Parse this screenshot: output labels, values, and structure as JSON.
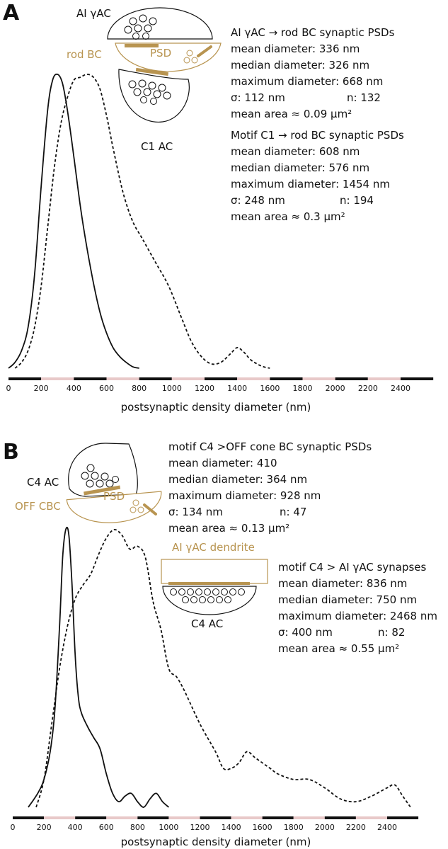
{
  "colors": {
    "curve": "#111111",
    "psd_tan": "#b89450",
    "axis_pink": "#e8c9c9"
  },
  "panels": [
    {
      "letter": "A",
      "schematic": {
        "top_cell": "AI γAC",
        "middle_cell": "rod BC",
        "psd": "PSD",
        "bottom_cell": "C1 AC"
      },
      "stats": [
        {
          "title": "AI γAC → rod BC synaptic PSDs",
          "mean_diameter": "mean diameter: 336 nm",
          "median_diameter": "median diameter: 326 nm",
          "maximum_diameter": "maximum diameter: 668 nm",
          "sigma": "σ: 112 nm",
          "n": "n: 132",
          "mean_area": "mean area ≈ 0.09 µm²"
        },
        {
          "title": "Motif C1 → rod BC synaptic PSDs",
          "mean_diameter": "mean diameter: 608 nm",
          "median_diameter": "median diameter: 576 nm",
          "maximum_diameter": "maximum diameter: 1454 nm",
          "sigma": "σ: 248 nm",
          "n": "n:  194",
          "mean_area": "mean area ≈ 0.3 µm²"
        }
      ]
    },
    {
      "letter": "B",
      "schematic": {
        "top_cell": "C4 AC",
        "middle_cell": "OFF CBC",
        "psd": "PSD",
        "dendrite": "AI γAC dendrite",
        "bottom_cell": "C4 AC"
      },
      "stats": [
        {
          "title": "motif C4 >OFF cone BC synaptic PSDs",
          "mean_diameter": "mean diameter: 410",
          "median_diameter": "median diameter: 364 nm",
          "maximum_diameter": "maximum diameter: 928 nm",
          "sigma": "σ: 134 nm",
          "n": "n: 47",
          "mean_area": "mean area ≈ 0.13 µm²"
        },
        {
          "title": "motif C4 > AI γAC synapses",
          "mean_diameter": "mean diameter: 836 nm",
          "median_diameter": "median diameter: 750 nm",
          "maximum_diameter": "maximum diameter: 2468 nm",
          "sigma": "σ: 400 nm",
          "n": "n:  82",
          "mean_area": "mean area ≈ 0.55 µm²"
        }
      ]
    }
  ],
  "chart_data": [
    {
      "type": "line",
      "panel": "A",
      "xlabel": "postsynaptic density diameter (nm)",
      "ylabel": "",
      "xlim": [
        0,
        2600
      ],
      "ylim": [
        0,
        1
      ],
      "xticks": [
        0,
        200,
        400,
        600,
        800,
        1000,
        1200,
        1400,
        1600,
        1800,
        2000,
        2200,
        2400
      ],
      "grid": false,
      "series": [
        {
          "style": "solid",
          "x": [
            0,
            40,
            80,
            120,
            160,
            200,
            240,
            270,
            300,
            330,
            360,
            400,
            440,
            480,
            520,
            560,
            600,
            640,
            680,
            720,
            760,
            800
          ],
          "y": [
            0.0,
            0.02,
            0.06,
            0.14,
            0.32,
            0.62,
            0.88,
            0.98,
            1.0,
            0.97,
            0.88,
            0.72,
            0.55,
            0.41,
            0.29,
            0.19,
            0.12,
            0.07,
            0.04,
            0.02,
            0.005,
            0.0
          ]
        },
        {
          "style": "dashed",
          "x": [
            40,
            80,
            120,
            160,
            200,
            240,
            280,
            320,
            360,
            400,
            440,
            480,
            520,
            560,
            600,
            640,
            700,
            760,
            820,
            900,
            980,
            1060,
            1120,
            1180,
            1240,
            1300,
            1360,
            1400,
            1440,
            1480,
            1520,
            1560,
            1600
          ],
          "y": [
            0.0,
            0.02,
            0.06,
            0.14,
            0.28,
            0.48,
            0.68,
            0.83,
            0.92,
            0.98,
            0.99,
            1.0,
            0.99,
            0.95,
            0.86,
            0.75,
            0.6,
            0.5,
            0.44,
            0.36,
            0.28,
            0.17,
            0.09,
            0.04,
            0.015,
            0.02,
            0.05,
            0.07,
            0.055,
            0.03,
            0.015,
            0.005,
            0.0
          ]
        }
      ]
    },
    {
      "type": "line",
      "panel": "B",
      "xlabel": "postsynaptic density diameter (nm)",
      "ylabel": "",
      "xlim": [
        0,
        2600
      ],
      "ylim": [
        0,
        1
      ],
      "xticks": [
        0,
        200,
        400,
        600,
        800,
        1000,
        1200,
        1400,
        1600,
        1800,
        2000,
        2200,
        2400
      ],
      "grid": false,
      "series": [
        {
          "style": "solid",
          "x": [
            100,
            160,
            200,
            240,
            270,
            300,
            320,
            340,
            360,
            380,
            400,
            420,
            440,
            480,
            520,
            560,
            600,
            640,
            680,
            720,
            760,
            800,
            840,
            880,
            920,
            960,
            1000
          ],
          "y": [
            0.0,
            0.05,
            0.1,
            0.2,
            0.35,
            0.65,
            0.9,
            1.0,
            0.98,
            0.8,
            0.55,
            0.4,
            0.34,
            0.29,
            0.25,
            0.21,
            0.12,
            0.05,
            0.02,
            0.04,
            0.05,
            0.02,
            0.0,
            0.03,
            0.05,
            0.02,
            0.0
          ]
        },
        {
          "style": "dashed",
          "x": [
            150,
            200,
            250,
            300,
            350,
            400,
            450,
            500,
            550,
            600,
            650,
            700,
            750,
            800,
            850,
            900,
            950,
            1000,
            1050,
            1100,
            1200,
            1300,
            1350,
            1400,
            1450,
            1500,
            1550,
            1600,
            1650,
            1700,
            1800,
            1900,
            2000,
            2100,
            2200,
            2300,
            2400,
            2450,
            2500,
            2550
          ],
          "y": [
            0.0,
            0.1,
            0.3,
            0.5,
            0.65,
            0.75,
            0.8,
            0.84,
            0.91,
            0.97,
            1.0,
            0.98,
            0.93,
            0.94,
            0.9,
            0.74,
            0.64,
            0.5,
            0.47,
            0.42,
            0.3,
            0.2,
            0.14,
            0.14,
            0.16,
            0.2,
            0.18,
            0.16,
            0.14,
            0.12,
            0.1,
            0.1,
            0.07,
            0.03,
            0.02,
            0.04,
            0.07,
            0.08,
            0.04,
            0.0
          ]
        }
      ]
    }
  ]
}
